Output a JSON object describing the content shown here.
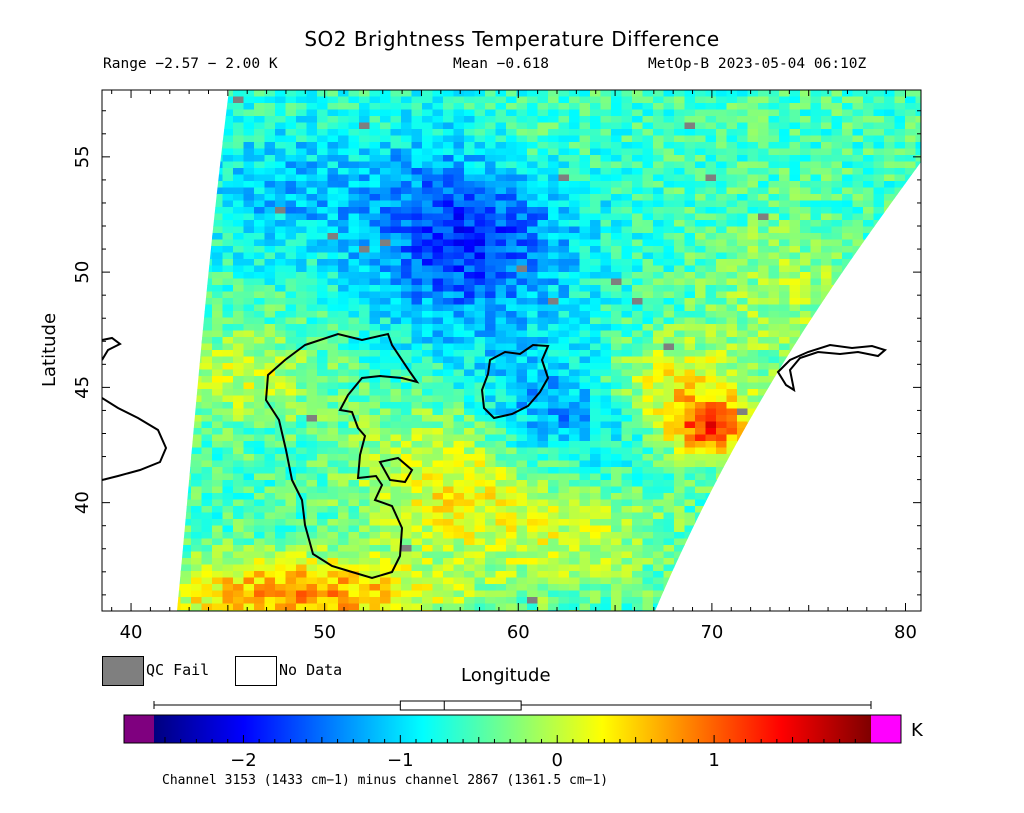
{
  "header": {
    "title": "SO2 Brightness Temperature Difference",
    "range": "Range −2.57 − 2.00 K",
    "mean": "Mean −0.618",
    "satellite_time": "MetOp-B 2023-05-04 06:10Z"
  },
  "axes": {
    "xlabel": "Longitude",
    "ylabel": "Latitude",
    "x_ticks": [
      "40",
      "50",
      "60",
      "70",
      "80"
    ],
    "y_ticks": [
      "40",
      "45",
      "50",
      "55"
    ],
    "xlim": [
      38.5,
      80.8
    ],
    "ylim": [
      35.3,
      57.9
    ]
  },
  "legend": {
    "qc_fail": "QC Fail",
    "no_data": "No Data",
    "qc_fail_color": "#7f7f7f",
    "no_data_color": "#ffffff"
  },
  "colorbar": {
    "unit": "K",
    "ticks": [
      "−2",
      "−1",
      "0",
      "1"
    ],
    "tick_values": [
      -2,
      -1,
      0,
      1
    ],
    "range": [
      -2.57,
      2.0
    ],
    "under_color": "#7f007f",
    "over_color": "#ff00ff",
    "boxplot": {
      "min": -2.57,
      "q1": -1.0,
      "median": -0.72,
      "q3": -0.23,
      "max": 2.0
    }
  },
  "footnote": "Channel 3153 (1433 cm−1) minus channel 2867 (1361.5 cm−1)",
  "chart_data": {
    "type": "heatmap",
    "title": "SO2 Brightness Temperature Difference",
    "xlabel": "Longitude",
    "ylabel": "Latitude",
    "units": "K",
    "value_range": [
      -2.57,
      2.0
    ],
    "mean": -0.618,
    "features": [
      {
        "region": "Caspian Sea interior",
        "approx_value": 0.2
      },
      {
        "region": "NE of Caspian (lon 55-62, lat 45-55)",
        "approx_value": -1.8
      },
      {
        "region": "Southern band (lon 43-53, lat 35-37)",
        "approx_value": 1.2
      },
      {
        "region": "East edge hotspot (lon 69-72, lat 42-44)",
        "approx_value": 1.9
      }
    ]
  }
}
